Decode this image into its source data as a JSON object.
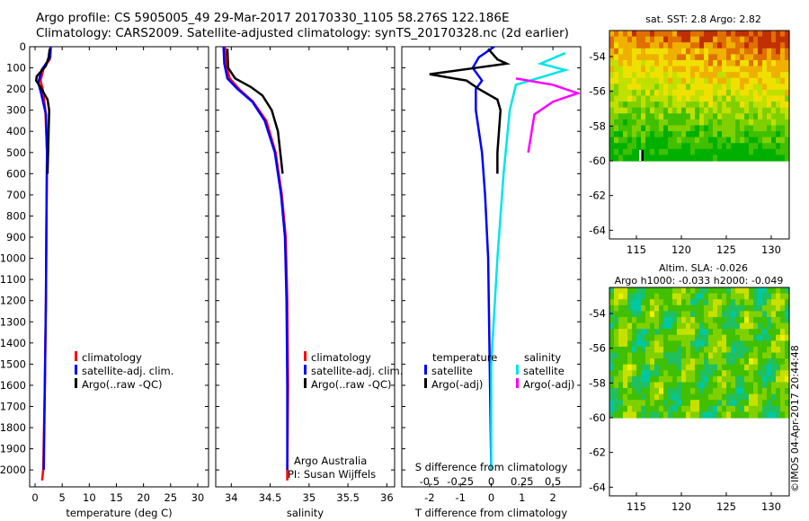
{
  "header": {
    "title_line1": "Argo profile: CS 5905005_49 29-Mar-2017 20170330_1105 58.276S 122.186E",
    "title_line2": "Climatology: CARS2009. Satellite-adjusted climatology: synTS_20170328.nc (2d earlier)"
  },
  "colors": {
    "climatology": "#ff0000",
    "satellite": "#0000ff",
    "argo": "#000000",
    "sal_satellite": "#00e5e5",
    "sal_argo": "#ff00ff"
  },
  "credit": "©IMOS 04-Apr-2017 20:44:48",
  "chart_data": [
    {
      "type": "line",
      "panel": "temperature",
      "xlabel": "temperature (deg C)",
      "ylabel": "",
      "xlim": [
        -1,
        32
      ],
      "ylim": [
        2080,
        0
      ],
      "xticks": [
        "0",
        "5",
        "10",
        "15",
        "20",
        "25",
        "30"
      ],
      "yticks": [
        "0",
        "100",
        "200",
        "300",
        "400",
        "500",
        "600",
        "700",
        "800",
        "900",
        "1000",
        "1100",
        "1200",
        "1300",
        "1400",
        "1500",
        "1600",
        "1700",
        "1800",
        "1900",
        "2000"
      ],
      "legend": [
        "climatology",
        "satellite-adj. clim.",
        "Argo(..raw -QC)"
      ],
      "series": [
        {
          "name": "climatology",
          "color": "#ff0000",
          "points": [
            [
              2.8,
              0
            ],
            [
              2.7,
              60
            ],
            [
              1.6,
              100
            ],
            [
              1.0,
              160
            ],
            [
              1.4,
              200
            ],
            [
              1.9,
              300
            ],
            [
              2.2,
              500
            ],
            [
              2.1,
              800
            ],
            [
              2.0,
              1200
            ],
            [
              1.8,
              1600
            ],
            [
              1.5,
              2000
            ],
            [
              1.3,
              2050
            ]
          ]
        },
        {
          "name": "satellite-adj. clim.",
          "color": "#0000ff",
          "points": [
            [
              2.9,
              0
            ],
            [
              2.8,
              50
            ],
            [
              1.2,
              110
            ],
            [
              0.6,
              170
            ],
            [
              1.2,
              230
            ],
            [
              2.0,
              320
            ],
            [
              2.2,
              500
            ],
            [
              2.1,
              800
            ],
            [
              2.0,
              1200
            ],
            [
              1.8,
              1600
            ],
            [
              1.6,
              2000
            ]
          ]
        },
        {
          "name": "Argo(..raw -QC)",
          "color": "#000000",
          "points": [
            [
              2.7,
              10
            ],
            [
              2.5,
              50
            ],
            [
              2.0,
              90
            ],
            [
              1.7,
              100
            ],
            [
              1.0,
              120
            ],
            [
              0.3,
              140
            ],
            [
              0.2,
              160
            ],
            [
              1.2,
              200
            ],
            [
              2.3,
              250
            ],
            [
              2.6,
              300
            ],
            [
              2.5,
              400
            ],
            [
              2.4,
              500
            ],
            [
              2.3,
              600
            ]
          ]
        }
      ]
    },
    {
      "type": "line",
      "panel": "salinity",
      "xlabel": "salinity",
      "ylabel": "",
      "xlim": [
        33.8,
        36.1
      ],
      "ylim": [
        2080,
        0
      ],
      "xticks": [
        "34",
        "34.5",
        "35",
        "35.5",
        "36"
      ],
      "legend": [
        "climatology",
        "satellite-adj. clim.",
        "Argo(..raw -QC)"
      ],
      "annotation": [
        "Argo Australia",
        "PI: Susan Wijffels"
      ],
      "series": [
        {
          "name": "climatology",
          "color": "#ff0000",
          "points": [
            [
              33.92,
              0
            ],
            [
              33.93,
              80
            ],
            [
              33.98,
              150
            ],
            [
              34.1,
              200
            ],
            [
              34.28,
              260
            ],
            [
              34.45,
              350
            ],
            [
              34.57,
              500
            ],
            [
              34.65,
              700
            ],
            [
              34.7,
              900
            ],
            [
              34.72,
              1200
            ],
            [
              34.73,
              1600
            ],
            [
              34.72,
              2000
            ],
            [
              34.72,
              2050
            ]
          ]
        },
        {
          "name": "satellite-adj. clim.",
          "color": "#0000ff",
          "points": [
            [
              33.9,
              0
            ],
            [
              33.91,
              80
            ],
            [
              33.95,
              150
            ],
            [
              34.08,
              200
            ],
            [
              34.27,
              260
            ],
            [
              34.43,
              350
            ],
            [
              34.56,
              500
            ],
            [
              34.64,
              700
            ],
            [
              34.69,
              900
            ],
            [
              34.71,
              1200
            ],
            [
              34.72,
              1600
            ],
            [
              34.72,
              2000
            ]
          ]
        },
        {
          "name": "Argo(..raw -QC)",
          "color": "#000000",
          "points": [
            [
              33.95,
              10
            ],
            [
              33.96,
              100
            ],
            [
              34.05,
              150
            ],
            [
              34.25,
              190
            ],
            [
              34.4,
              230
            ],
            [
              34.52,
              300
            ],
            [
              34.6,
              400
            ],
            [
              34.63,
              500
            ],
            [
              34.66,
              600
            ]
          ]
        }
      ]
    },
    {
      "type": "line",
      "panel": "differences",
      "xlabel": "T difference from climatology",
      "xlabel_top": "S difference from climatology",
      "xlim": [
        -2.9,
        2.9
      ],
      "ylim": [
        2080,
        0
      ],
      "xticks": [
        "-2",
        "-1",
        "0",
        "1",
        "2"
      ],
      "xticks_top": [
        "-0.5",
        "-0.25",
        "0",
        "0.25",
        "0.5"
      ],
      "legend_titles": [
        "temperature",
        "salinity"
      ],
      "legend": [
        "satellite",
        "Argo(-adj)",
        "satellite",
        "Argo(-adj)"
      ],
      "series": [
        {
          "name": "satellite",
          "group": "temperature",
          "color": "#0000ff",
          "points": [
            [
              0.1,
              0
            ],
            [
              -0.4,
              50
            ],
            [
              -0.6,
              100
            ],
            [
              -0.3,
              160
            ],
            [
              -0.5,
              200
            ],
            [
              -0.5,
              300
            ],
            [
              -0.3,
              500
            ],
            [
              -0.2,
              700
            ],
            [
              -0.1,
              1000
            ],
            [
              -0.05,
              1500
            ],
            [
              0,
              2000
            ]
          ]
        },
        {
          "name": "Argo(-adj)",
          "group": "temperature",
          "color": "#000000",
          "points": [
            [
              -0.1,
              10
            ],
            [
              0.2,
              60
            ],
            [
              0.5,
              80
            ],
            [
              -0.5,
              100
            ],
            [
              -2.0,
              130
            ],
            [
              -0.8,
              160
            ],
            [
              -0.4,
              200
            ],
            [
              0.2,
              250
            ],
            [
              0.3,
              300
            ],
            [
              0.25,
              400
            ],
            [
              0.2,
              500
            ],
            [
              0.2,
              600
            ]
          ]
        },
        {
          "name": "satellite",
          "group": "salinity",
          "color": "#00e5e5",
          "points": [
            [
              0.6,
              30
            ],
            [
              0.4,
              80
            ],
            [
              0.6,
              110
            ],
            [
              0.2,
              180
            ],
            [
              0.15,
              300
            ],
            [
              0.1,
              600
            ],
            [
              0.05,
              1000
            ],
            [
              0.0,
              1500
            ],
            [
              0.0,
              2000
            ]
          ]
        },
        {
          "name": "Argo(-adj)",
          "group": "salinity",
          "color": "#ff00ff",
          "points": [
            [
              0.2,
              150
            ],
            [
              0.5,
              180
            ],
            [
              0.7,
              220
            ],
            [
              0.5,
              260
            ],
            [
              0.35,
              320
            ],
            [
              0.3,
              500
            ]
          ]
        }
      ]
    },
    {
      "type": "heatmap",
      "panel": "sst-map",
      "title": "sat. SST: 2.8  Argo: 2.82",
      "xlim": [
        112,
        132
      ],
      "ylim": [
        -64.5,
        -52.5
      ],
      "xticks": [
        "115",
        "120",
        "125",
        "130"
      ],
      "yticks": [
        "-54",
        "-56",
        "-58",
        "-60",
        "-62",
        "-64"
      ],
      "data_extent_lat": [
        -60,
        -52.5
      ],
      "palette": [
        "#00b000",
        "#40c000",
        "#80d000",
        "#c0e000",
        "#f0e000",
        "#f0b000",
        "#e07000",
        "#c03000"
      ]
    },
    {
      "type": "heatmap",
      "panel": "sla-map",
      "title": "Altim. SLA: -0.026",
      "subtitle": "Argo h1000: -0.033 h2000: -0.049",
      "xlim": [
        112,
        132
      ],
      "ylim": [
        -64.5,
        -52.5
      ],
      "xticks": [
        "115",
        "120",
        "125",
        "130"
      ],
      "yticks": [
        "-54",
        "-56",
        "-58",
        "-60",
        "-62",
        "-64"
      ],
      "data_extent_lat": [
        -60,
        -52.5
      ],
      "palette": [
        "#00c8a0",
        "#20c060",
        "#40c000",
        "#80d000",
        "#c8e000",
        "#f0f000"
      ]
    }
  ]
}
